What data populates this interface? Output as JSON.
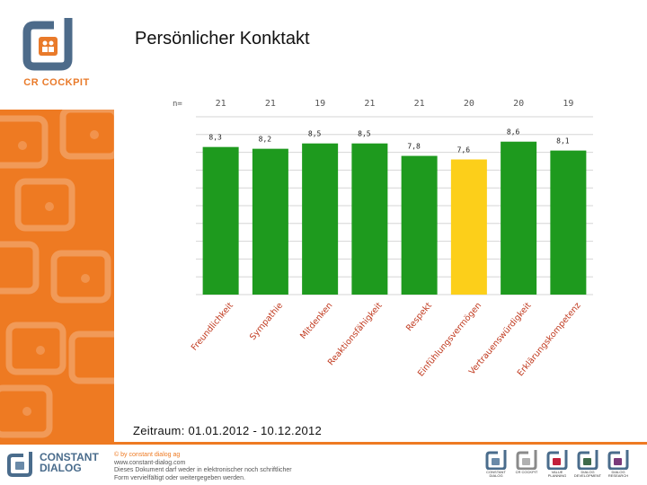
{
  "logo": {
    "text": "CR COCKPIT",
    "icon": "cr-cockpit-logo-icon"
  },
  "page": {
    "title": "Persönlicher Konktakt",
    "period": "Zeitraum: 01.01.2012 - 10.12.2012"
  },
  "footer": {
    "company_lines": [
      "CONSTANT",
      "DIALOG"
    ],
    "copyright": "© by constant dialog ag",
    "website": "www.constant-dialog.com",
    "notice_line1": "Dieses Dokument darf weder in elektronischer noch schriftlicher",
    "notice_line2": "Form vervielfältigt oder weitergegeben werden.",
    "products": [
      {
        "name": "CONSTANT DIALOG",
        "color": "#6a8aa8"
      },
      {
        "name": "CR COCKPIT",
        "color": "#9a9a9a"
      },
      {
        "name": "VALUE PLANNING",
        "color": "#c21f3a"
      },
      {
        "name": "DIALOG DEVELOPMENT",
        "color": "#3e6a4a"
      },
      {
        "name": "DIALOG RESEARCH",
        "color": "#7a3a7a"
      }
    ]
  },
  "colors": {
    "accent": "#ee7a22",
    "bar": "#1e9a1e",
    "bar_highlight": "#fccf1a"
  },
  "chart_data": {
    "type": "bar",
    "n_label": "n=",
    "categories": [
      "Freundlichkeit",
      "Sympathie",
      "Mitdenken",
      "Reaktionsfähigkeit",
      "Respekt",
      "Einfühlungsvermögen",
      "Vertrauenswürdigkeit",
      "Erklärungskompetenz"
    ],
    "values": [
      8.3,
      8.2,
      8.5,
      8.5,
      7.8,
      7.6,
      8.6,
      8.1
    ],
    "value_labels": [
      "8,3",
      "8,2",
      "8,5",
      "8,5",
      "7,8",
      "7,6",
      "8,6",
      "8,1"
    ],
    "n": [
      "21",
      "21",
      "19",
      "21",
      "21",
      "20",
      "20",
      "19"
    ],
    "highlight_index": 5,
    "ylim": [
      0,
      10
    ],
    "grid": true,
    "legend": "none"
  }
}
